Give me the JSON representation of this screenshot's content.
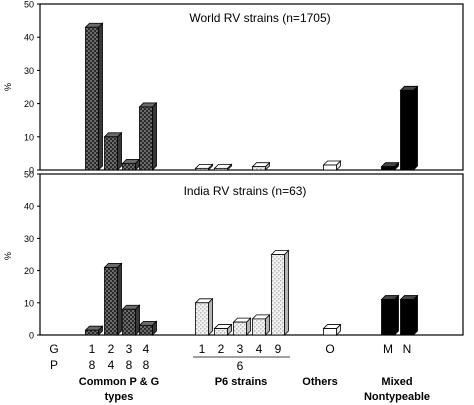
{
  "chart_data": [
    {
      "type": "bar",
      "title": "World RV strains (n=1705)",
      "ylabel": "%",
      "ylim": [
        0,
        50
      ],
      "yticks": [
        0,
        10,
        20,
        30,
        40,
        50
      ],
      "grid": false,
      "categories": [
        "1/8",
        "2/4",
        "3/8",
        "4/8",
        "6/1",
        "6/2",
        "6/3",
        "6/4",
        "6/9",
        "O",
        "M",
        "N"
      ],
      "values": [
        43,
        10,
        2,
        19,
        0.5,
        0.5,
        0,
        1,
        0,
        1.5,
        1,
        24
      ]
    },
    {
      "type": "bar",
      "title": "India RV strains (n=63)",
      "ylabel": "%",
      "ylim": [
        0,
        50
      ],
      "yticks": [
        0,
        10,
        20,
        30,
        40,
        50
      ],
      "grid": false,
      "categories": [
        "1/8",
        "2/4",
        "3/8",
        "4/8",
        "6/1",
        "6/2",
        "6/3",
        "6/4",
        "6/9",
        "O",
        "M",
        "N"
      ],
      "values": [
        1.5,
        21,
        8,
        3,
        10,
        2,
        4,
        5,
        25,
        2,
        11,
        11
      ]
    }
  ],
  "axis": {
    "row_g_label": "G",
    "row_p_label": "P",
    "common_g": [
      "1",
      "2",
      "3",
      "4"
    ],
    "common_p": [
      "8",
      "4",
      "8",
      "8"
    ],
    "p6_g": [
      "1",
      "2",
      "3",
      "4",
      "9"
    ],
    "p6_p": "6",
    "others_g": "O",
    "mixed_g": "M",
    "nontypeable_g": "N"
  },
  "groups": {
    "common": [
      "Common P & G",
      "types"
    ],
    "p6": "P6  strains",
    "others": "Others",
    "mixed": [
      "Mixed",
      "Nontypeable"
    ]
  },
  "colors": {
    "common": "#555555",
    "p6": "#dddddd",
    "others": "#ffffff",
    "mixed": "#000000"
  }
}
